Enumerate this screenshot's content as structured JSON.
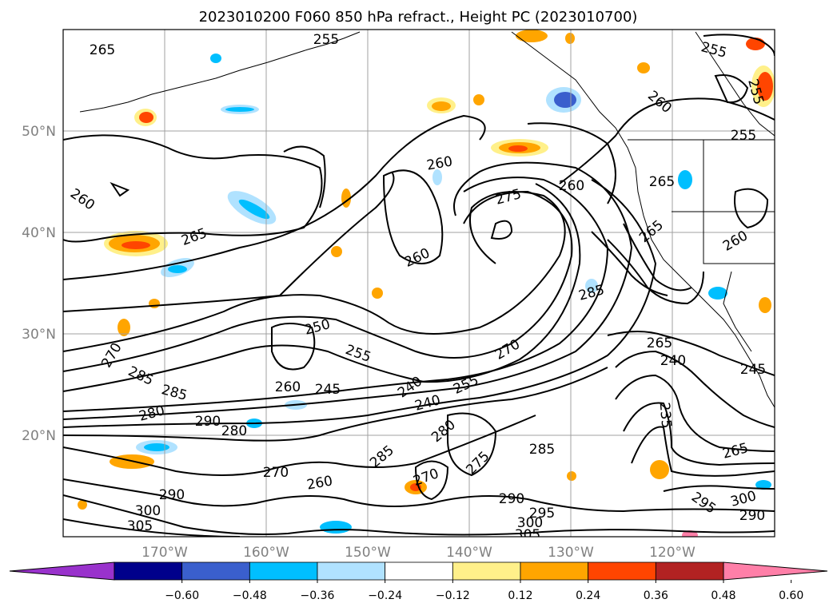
{
  "title": "2023010200 F060 850 hPa refract., Height PC (2023010700)",
  "lat_labels": [
    "50°N",
    "40°N",
    "30°N",
    "20°N"
  ],
  "lon_labels": [
    "170°W",
    "160°W",
    "150°W",
    "140°W",
    "130°W",
    "120°W"
  ],
  "colorbar": {
    "ticks": [
      "-0.60",
      "-0.48",
      "-0.36",
      "-0.24",
      "-0.12",
      "0.12",
      "0.24",
      "0.36",
      "0.48",
      "0.60"
    ],
    "colors": [
      "#9932cc",
      "#00008b",
      "#3a5fcd",
      "#00bfff",
      "#b0e2ff",
      "#ffffff",
      "#fff08a",
      "#ffa500",
      "#ff4500",
      "#b22222",
      "#ff7fa8"
    ]
  },
  "contour_labels": [
    "265",
    "255",
    "255",
    "255",
    "260",
    "255",
    "260",
    "260",
    "275",
    "260",
    "265",
    "260",
    "260",
    "265",
    "265",
    "285",
    "250",
    "255",
    "260",
    "245",
    "240",
    "270",
    "240",
    "255",
    "270",
    "265",
    "240",
    "245",
    "235",
    "285",
    "285",
    "280",
    "290",
    "280",
    "285",
    "280",
    "275",
    "270",
    "290",
    "295",
    "300",
    "305",
    "295",
    "300",
    "290",
    "285",
    "290",
    "300",
    "305",
    "260",
    "270",
    "265"
  ]
}
